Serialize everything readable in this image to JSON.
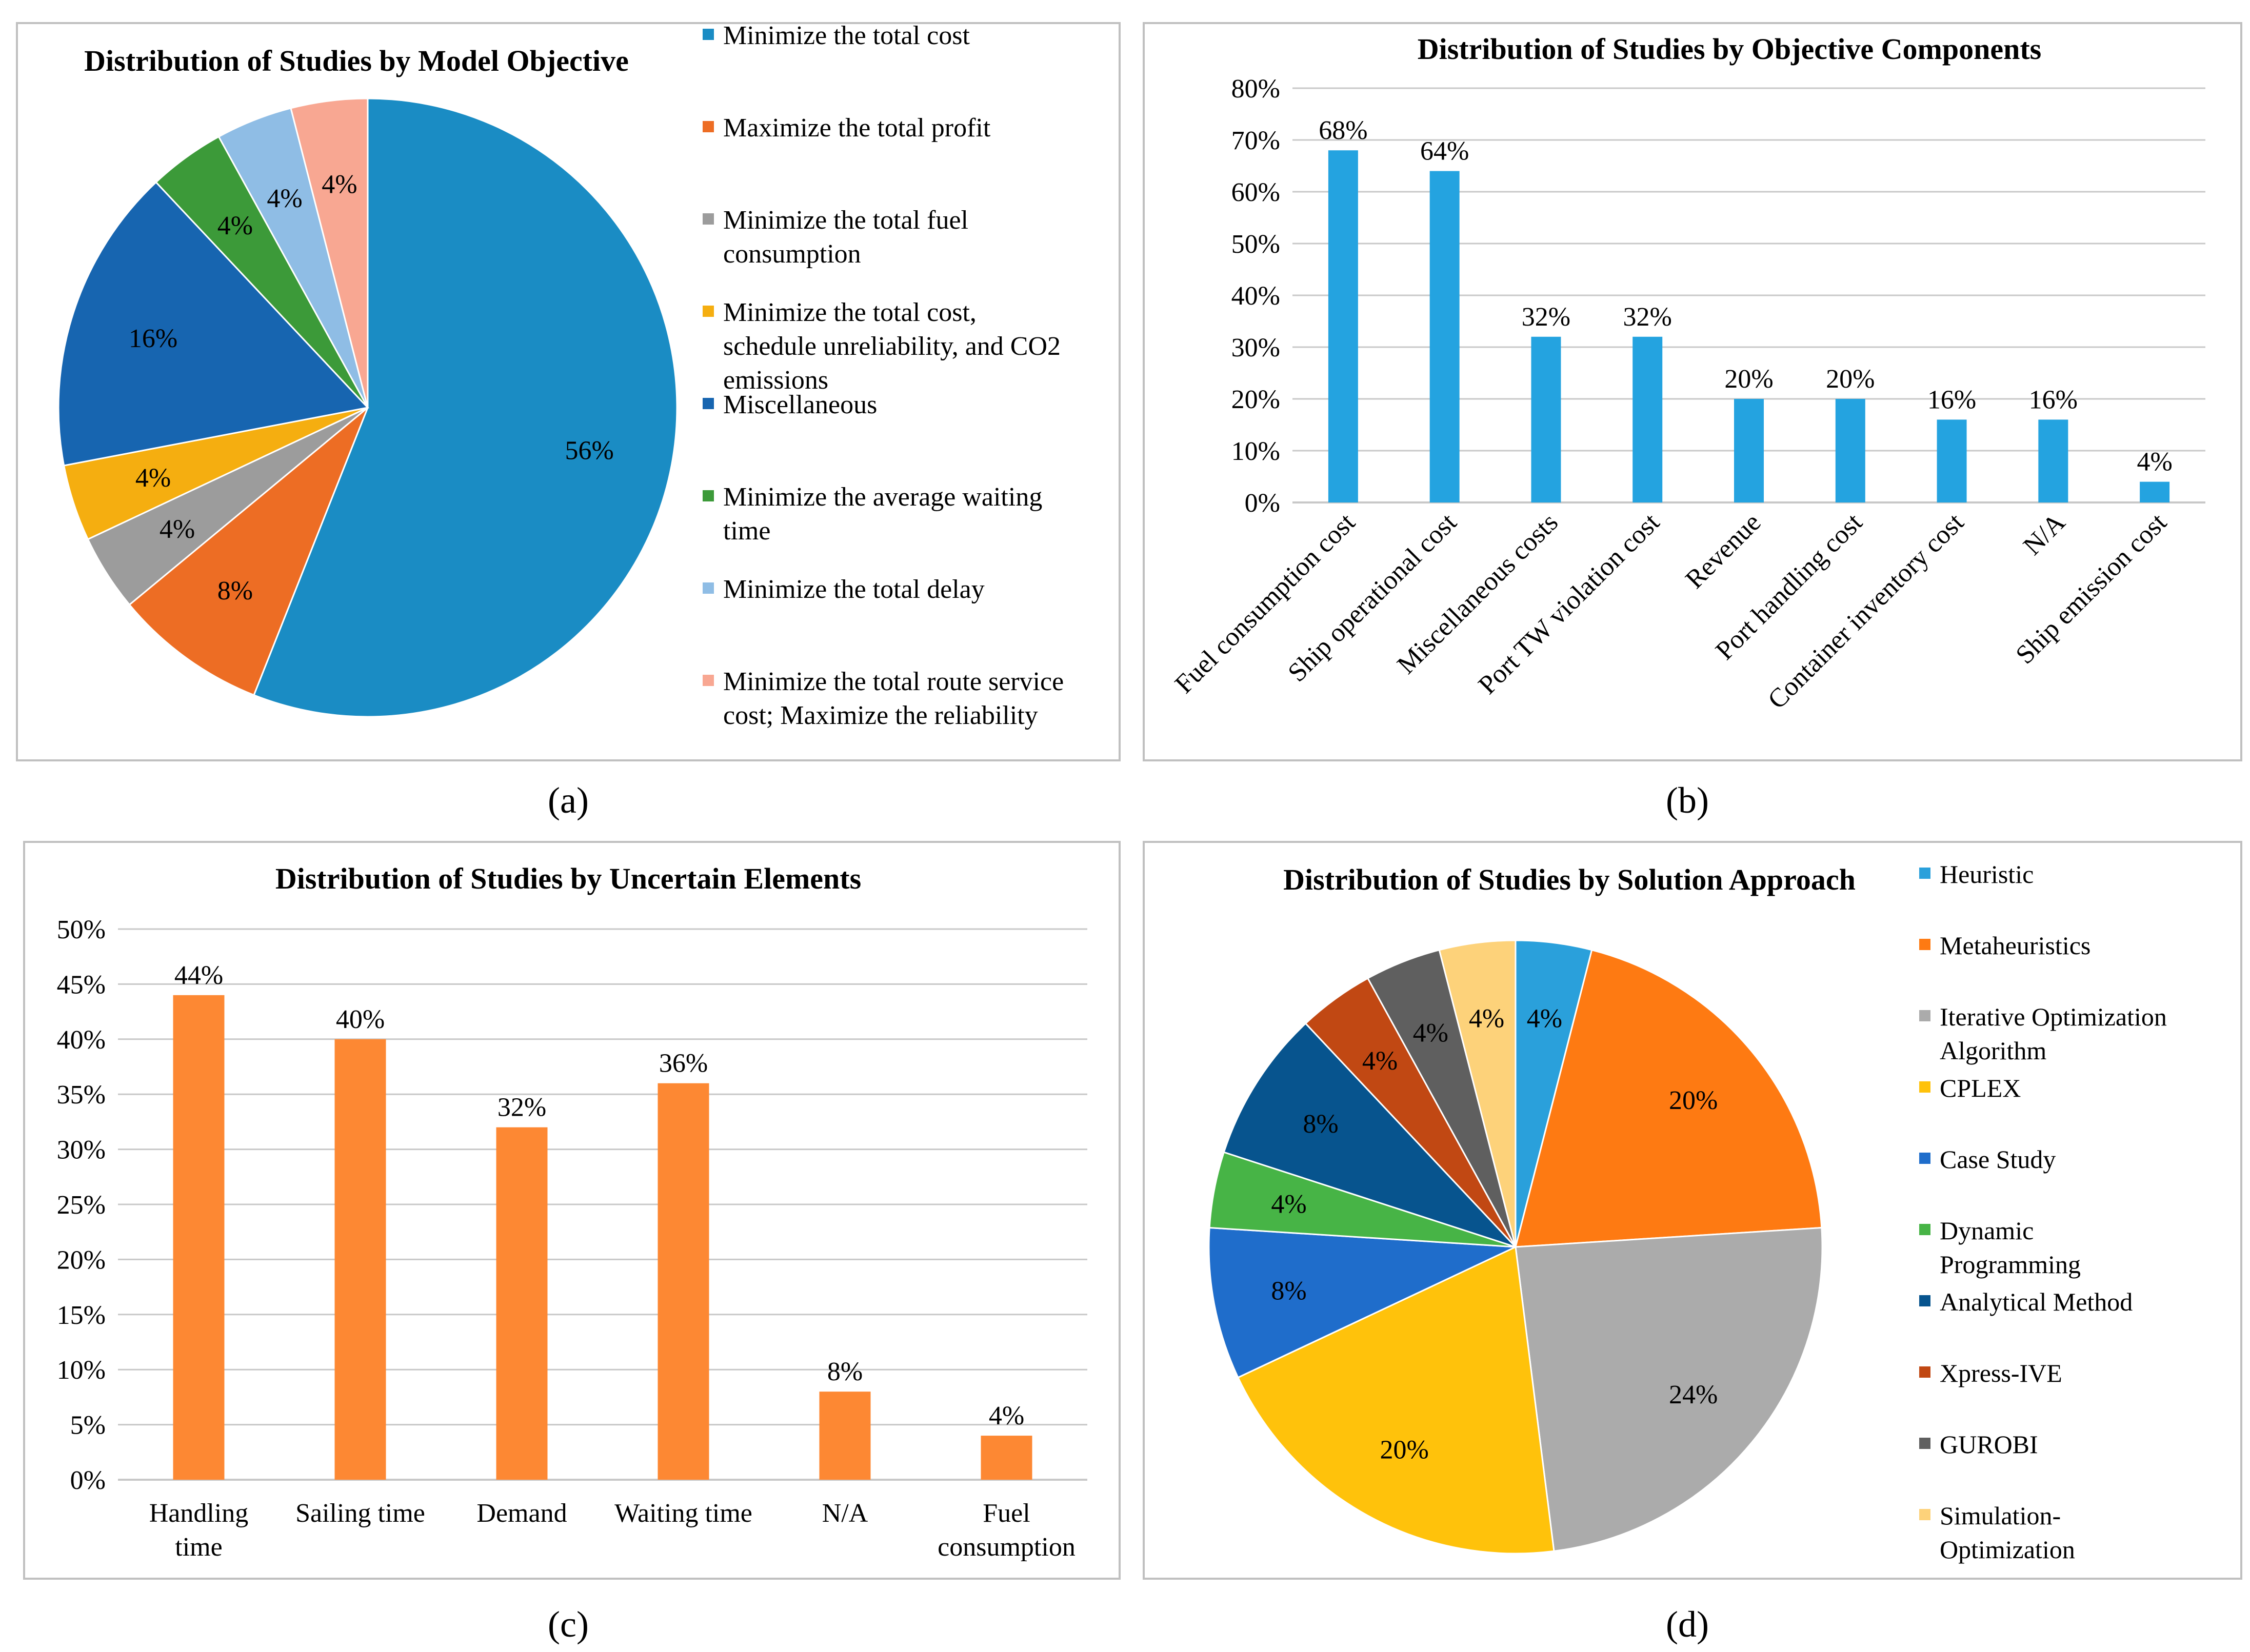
{
  "panel_labels": [
    "(a)",
    "(b)",
    "(c)",
    "(d)"
  ],
  "colors": {
    "c_blue": "#1a8cc4",
    "c_orange": "#ed6d24",
    "c_gray": "#9c9c9c",
    "c_gold": "#f5ae10",
    "c_navy": "#1765b0",
    "c_green": "#3c9a39",
    "c_lightblue": "#8fbde5",
    "c_salmon": "#f8a792",
    "bar_blue": "#24a3e0",
    "bar_orange": "#fd8833",
    "d_heuristic": "#2aa0db",
    "d_meta": "#fe7a12",
    "d_iter": "#ababab",
    "d_cplex": "#ffc20b",
    "d_case": "#1f6dcb",
    "d_dyn": "#47b446",
    "d_anal": "#07548e",
    "d_xpress": "#c14813",
    "d_gurobi": "#5f5f5f",
    "d_sim": "#fdd27a",
    "gridline": "#c8c8c8",
    "border": "#c0c0c0"
  },
  "chart_data": [
    {
      "type": "pie",
      "title": "Distribution of Studies by Model Objective",
      "legend_position": "right",
      "slices": [
        {
          "name": "Minimize the total cost",
          "value": 56,
          "label": "56%",
          "color_key": "c_blue"
        },
        {
          "name": "Maximize the total profit",
          "value": 8,
          "label": "8%",
          "color_key": "c_orange"
        },
        {
          "name": "Minimize the total fuel consumption",
          "value": 4,
          "label": "4%",
          "color_key": "c_gray"
        },
        {
          "name": "Minimize the total cost, schedule unreliability, and CO2 emissions",
          "value": 4,
          "label": "4%",
          "color_key": "c_gold"
        },
        {
          "name": "Miscellaneous",
          "value": 16,
          "label": "16%",
          "color_key": "c_navy"
        },
        {
          "name": "Minimize the average waiting time",
          "value": 4,
          "label": "4%",
          "color_key": "c_green"
        },
        {
          "name": "Minimize the total delay",
          "value": 4,
          "label": "4%",
          "color_key": "c_lightblue"
        },
        {
          "name": "Minimize the total route service cost; Maximize the reliability",
          "value": 4,
          "label": "4%",
          "color_key": "c_salmon"
        }
      ],
      "legend_lines": [
        [
          "Minimize the total cost"
        ],
        [
          "Maximize the total profit"
        ],
        [
          "Minimize the total fuel",
          "consumption"
        ],
        [
          "Minimize the total cost,",
          "schedule unreliability, and CO2",
          "emissions"
        ],
        [
          "Miscellaneous"
        ],
        [
          "Minimize the average waiting",
          "time"
        ],
        [
          "Minimize the total delay"
        ],
        [
          "Minimize the total route service",
          "cost; Maximize the reliability"
        ]
      ]
    },
    {
      "type": "bar",
      "title": "Distribution of Studies by Objective Components",
      "categories": [
        "Fuel consumption cost",
        "Ship operational cost",
        "Miscellaneous costs",
        "Port TW violation cost",
        "Revenue",
        "Port handling cost",
        "Container inventory cost",
        "N/A",
        "Ship emission cost"
      ],
      "values": [
        68,
        64,
        32,
        32,
        20,
        20,
        16,
        16,
        4
      ],
      "data_labels": [
        "68%",
        "64%",
        "32%",
        "32%",
        "20%",
        "20%",
        "16%",
        "16%",
        "4%"
      ],
      "ylim": [
        0,
        80
      ],
      "yticks": [
        "0%",
        "10%",
        "20%",
        "30%",
        "40%",
        "50%",
        "60%",
        "70%",
        "80%"
      ],
      "grid": true,
      "color_key": "bar_blue"
    },
    {
      "type": "bar",
      "title": "Distribution of Studies by Uncertain Elements",
      "categories": [
        "Handling time",
        "Sailing time",
        "Demand",
        "Waiting time",
        "N/A",
        "Fuel consumption"
      ],
      "category_lines": [
        [
          "Handling",
          "time"
        ],
        [
          "Sailing time"
        ],
        [
          "Demand"
        ],
        [
          "Waiting time"
        ],
        [
          "N/A"
        ],
        [
          "Fuel",
          "consumption"
        ]
      ],
      "values": [
        44,
        40,
        32,
        36,
        8,
        4
      ],
      "data_labels": [
        "44%",
        "40%",
        "32%",
        "36%",
        "8%",
        "4%"
      ],
      "ylim": [
        0,
        50
      ],
      "yticks": [
        "0%",
        "5%",
        "10%",
        "15%",
        "20%",
        "25%",
        "30%",
        "35%",
        "40%",
        "45%",
        "50%"
      ],
      "grid": true,
      "color_key": "bar_orange"
    },
    {
      "type": "pie",
      "title": "Distribution of Studies by Solution Approach",
      "legend_position": "right",
      "slices": [
        {
          "name": "Heuristic",
          "value": 4,
          "label": "4%",
          "color_key": "d_heuristic"
        },
        {
          "name": "Metaheuristics",
          "value": 20,
          "label": "20%",
          "color_key": "d_meta"
        },
        {
          "name": "Iterative Optimization Algorithm",
          "value": 24,
          "label": "24%",
          "color_key": "d_iter"
        },
        {
          "name": "CPLEX",
          "value": 20,
          "label": "20%",
          "color_key": "d_cplex"
        },
        {
          "name": "Case Study",
          "value": 8,
          "label": "8%",
          "color_key": "d_case"
        },
        {
          "name": "Dynamic Programming",
          "value": 4,
          "label": "4%",
          "color_key": "d_dyn"
        },
        {
          "name": "Analytical Method",
          "value": 8,
          "label": "8%",
          "color_key": "d_anal"
        },
        {
          "name": "Xpress-IVE",
          "value": 4,
          "label": "4%",
          "color_key": "d_xpress"
        },
        {
          "name": "GUROBI",
          "value": 4,
          "label": "4%",
          "color_key": "d_gurobi"
        },
        {
          "name": "Simulation-Optimization",
          "value": 4,
          "label": "4%",
          "color_key": "d_sim"
        }
      ],
      "legend_lines": [
        [
          "Heuristic"
        ],
        [
          "Metaheuristics"
        ],
        [
          "Iterative Optimization",
          "Algorithm"
        ],
        [
          "CPLEX"
        ],
        [
          "Case Study"
        ],
        [
          "Dynamic",
          "Programming"
        ],
        [
          "Analytical Method"
        ],
        [
          "Xpress-IVE"
        ],
        [
          "GUROBI"
        ],
        [
          "Simulation-",
          "Optimization"
        ]
      ]
    }
  ]
}
